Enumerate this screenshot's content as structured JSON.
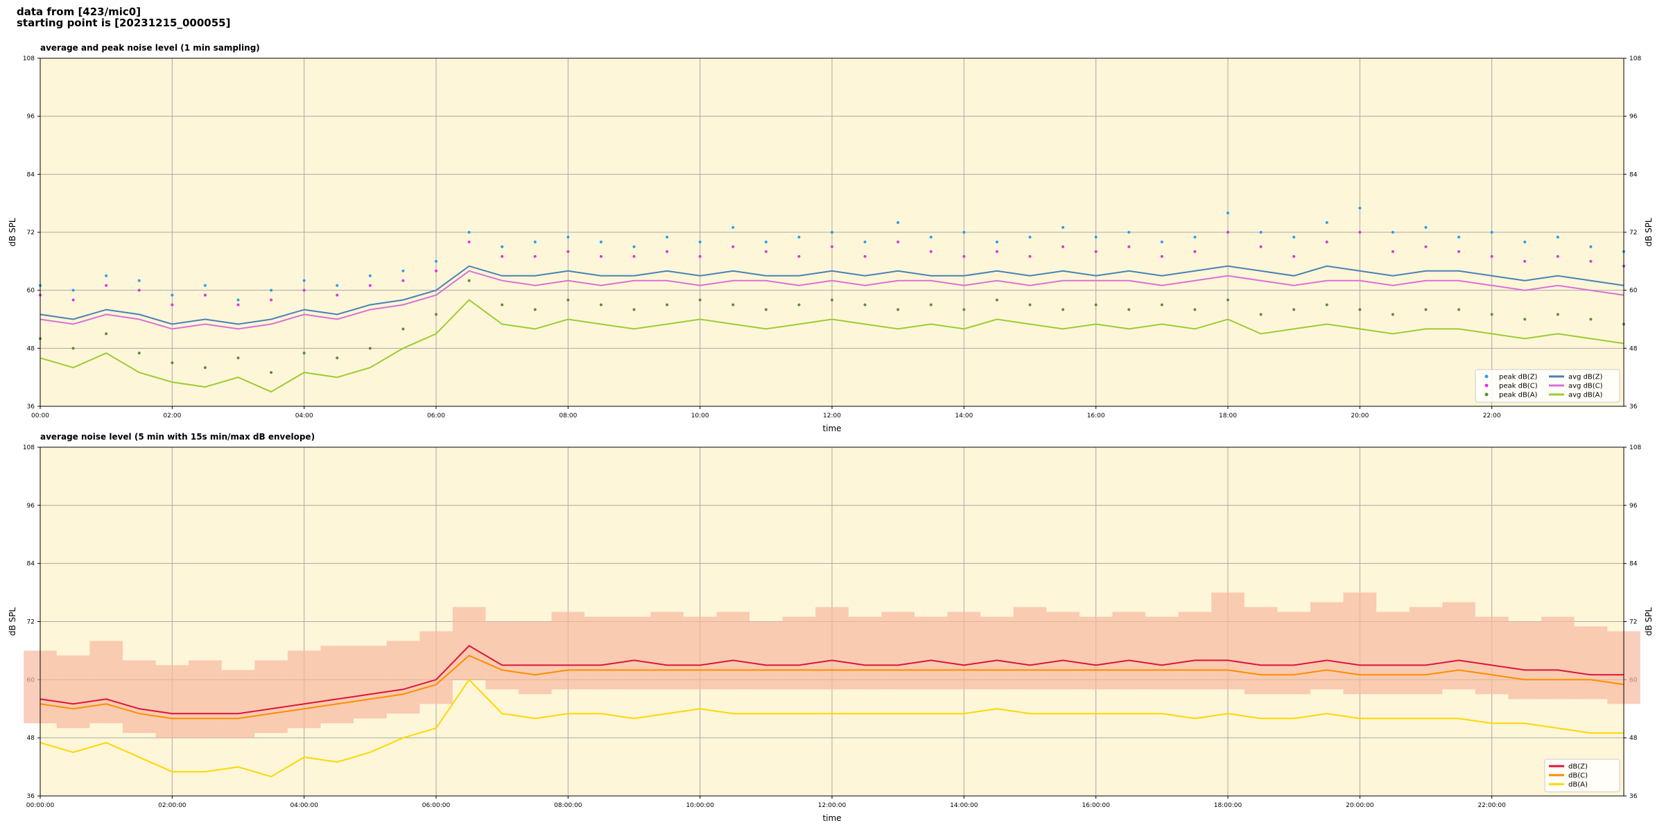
{
  "header": {
    "line1": "data from [423/mic0]",
    "line2": "starting point is [20231215_000055]"
  },
  "chart_data": [
    {
      "type": "line",
      "title": "average and peak noise level (1 min sampling)",
      "xlabel": "time",
      "ylabel": "dB SPL",
      "background": "#fef6d8",
      "grid": true,
      "legend": "lower right",
      "legend_columns": 2,
      "xlim": [
        0,
        24
      ],
      "ylim": [
        36,
        108
      ],
      "xticks": [
        {
          "value": 0,
          "label": "00:00"
        },
        {
          "value": 2,
          "label": "02:00"
        },
        {
          "value": 4,
          "label": "04:00"
        },
        {
          "value": 6,
          "label": "06:00"
        },
        {
          "value": 8,
          "label": "08:00"
        },
        {
          "value": 10,
          "label": "10:00"
        },
        {
          "value": 12,
          "label": "12:00"
        },
        {
          "value": 14,
          "label": "14:00"
        },
        {
          "value": 16,
          "label": "16:00"
        },
        {
          "value": 18,
          "label": "18:00"
        },
        {
          "value": 20,
          "label": "20:00"
        },
        {
          "value": 22,
          "label": "22:00"
        }
      ],
      "yticks": [
        36,
        48,
        60,
        72,
        84,
        96,
        108
      ],
      "x": [
        0,
        0.5,
        1,
        1.5,
        2,
        2.5,
        3,
        3.5,
        4,
        4.5,
        5,
        5.5,
        6,
        6.5,
        7,
        7.5,
        8,
        8.5,
        9,
        9.5,
        10,
        10.5,
        11,
        11.5,
        12,
        12.5,
        13,
        13.5,
        14,
        14.5,
        15,
        15.5,
        16,
        16.5,
        17,
        17.5,
        18,
        18.5,
        19,
        19.5,
        20,
        20.5,
        21,
        21.5,
        22,
        22.5,
        23,
        23.5,
        24
      ],
      "series": [
        {
          "name": "peak dB(Z)",
          "color": "#2a9df4",
          "style": "points",
          "values": [
            61,
            60,
            63,
            62,
            59,
            61,
            58,
            60,
            62,
            61,
            63,
            64,
            66,
            72,
            69,
            70,
            71,
            70,
            69,
            71,
            70,
            73,
            70,
            71,
            72,
            70,
            74,
            71,
            72,
            70,
            71,
            73,
            71,
            72,
            70,
            71,
            76,
            72,
            71,
            74,
            77,
            72,
            73,
            71,
            72,
            70,
            71,
            69,
            68
          ]
        },
        {
          "name": "peak dB(C)",
          "color": "#e033e0",
          "style": "points",
          "values": [
            59,
            58,
            61,
            60,
            57,
            59,
            57,
            58,
            60,
            59,
            61,
            62,
            64,
            70,
            67,
            67,
            68,
            67,
            67,
            68,
            67,
            69,
            68,
            67,
            69,
            67,
            70,
            68,
            67,
            68,
            67,
            69,
            68,
            69,
            67,
            68,
            72,
            69,
            67,
            70,
            72,
            68,
            69,
            68,
            67,
            66,
            67,
            66,
            65
          ]
        },
        {
          "name": "peak dB(A)",
          "color": "#5e8c3a",
          "style": "points",
          "values": [
            50,
            48,
            51,
            47,
            45,
            44,
            46,
            43,
            47,
            46,
            48,
            52,
            55,
            62,
            57,
            56,
            58,
            57,
            56,
            57,
            58,
            57,
            56,
            57,
            58,
            57,
            56,
            57,
            56,
            58,
            57,
            56,
            57,
            56,
            57,
            56,
            58,
            55,
            56,
            57,
            56,
            55,
            56,
            56,
            55,
            54,
            55,
            54,
            53
          ]
        },
        {
          "name": "avg dB(Z)",
          "color": "#4682b4",
          "style": "line",
          "values": [
            55,
            54,
            56,
            55,
            53,
            54,
            53,
            54,
            56,
            55,
            57,
            58,
            60,
            65,
            63,
            63,
            64,
            63,
            63,
            64,
            63,
            64,
            63,
            63,
            64,
            63,
            64,
            63,
            63,
            64,
            63,
            64,
            63,
            64,
            63,
            64,
            65,
            64,
            63,
            65,
            64,
            63,
            64,
            64,
            63,
            62,
            63,
            62,
            61
          ]
        },
        {
          "name": "avg dB(C)",
          "color": "#da70d6",
          "style": "line",
          "values": [
            54,
            53,
            55,
            54,
            52,
            53,
            52,
            53,
            55,
            54,
            56,
            57,
            59,
            64,
            62,
            61,
            62,
            61,
            62,
            62,
            61,
            62,
            62,
            61,
            62,
            61,
            62,
            62,
            61,
            62,
            61,
            62,
            62,
            62,
            61,
            62,
            63,
            62,
            61,
            62,
            62,
            61,
            62,
            62,
            61,
            60,
            61,
            60,
            59
          ]
        },
        {
          "name": "avg dB(A)",
          "color": "#9acd32",
          "style": "line",
          "values": [
            46,
            44,
            47,
            43,
            41,
            40,
            42,
            39,
            43,
            42,
            44,
            48,
            51,
            58,
            53,
            52,
            54,
            53,
            52,
            53,
            54,
            53,
            52,
            53,
            54,
            53,
            52,
            53,
            52,
            54,
            53,
            52,
            53,
            52,
            53,
            52,
            54,
            51,
            52,
            53,
            52,
            51,
            52,
            52,
            51,
            50,
            51,
            50,
            49
          ]
        }
      ]
    },
    {
      "type": "line",
      "title": "average noise level (5 min with 15s min/max dB envelope)",
      "xlabel": "time",
      "ylabel": "dB SPL",
      "background": "#fef6d8",
      "grid": true,
      "legend": "lower right",
      "legend_columns": 1,
      "xlim": [
        0,
        24
      ],
      "ylim": [
        36,
        108
      ],
      "xticks": [
        {
          "value": 0,
          "label": "00:00:00"
        },
        {
          "value": 2,
          "label": "02:00:00"
        },
        {
          "value": 4,
          "label": "04:00:00"
        },
        {
          "value": 6,
          "label": "06:00:00"
        },
        {
          "value": 8,
          "label": "08:00:00"
        },
        {
          "value": 10,
          "label": "10:00:00"
        },
        {
          "value": 12,
          "label": "12:00:00"
        },
        {
          "value": 14,
          "label": "14:00:00"
        },
        {
          "value": 16,
          "label": "16:00:00"
        },
        {
          "value": 18,
          "label": "18:00:00"
        },
        {
          "value": 20,
          "label": "20:00:00"
        },
        {
          "value": 22,
          "label": "22:00:00"
        }
      ],
      "yticks": [
        36,
        48,
        60,
        72,
        84,
        96,
        108
      ],
      "x": [
        0,
        0.5,
        1,
        1.5,
        2,
        2.5,
        3,
        3.5,
        4,
        4.5,
        5,
        5.5,
        6,
        6.5,
        7,
        7.5,
        8,
        8.5,
        9,
        9.5,
        10,
        10.5,
        11,
        11.5,
        12,
        12.5,
        13,
        13.5,
        14,
        14.5,
        15,
        15.5,
        16,
        16.5,
        17,
        17.5,
        18,
        18.5,
        19,
        19.5,
        20,
        20.5,
        21,
        21.5,
        22,
        22.5,
        23,
        23.5,
        24
      ],
      "envelope_color": "#f7b9a0",
      "envelope_max": [
        66,
        65,
        68,
        64,
        63,
        64,
        62,
        64,
        66,
        67,
        67,
        68,
        70,
        75,
        72,
        72,
        74,
        73,
        73,
        74,
        73,
        74,
        72,
        73,
        75,
        73,
        74,
        73,
        74,
        73,
        75,
        74,
        73,
        74,
        73,
        74,
        78,
        75,
        74,
        76,
        78,
        74,
        75,
        76,
        73,
        72,
        73,
        71,
        70
      ],
      "envelope_min": [
        51,
        50,
        51,
        49,
        48,
        48,
        48,
        49,
        50,
        51,
        52,
        53,
        55,
        60,
        58,
        57,
        58,
        58,
        58,
        58,
        58,
        58,
        58,
        58,
        58,
        58,
        58,
        58,
        58,
        58,
        58,
        58,
        58,
        58,
        58,
        58,
        58,
        57,
        57,
        58,
        57,
        57,
        57,
        58,
        57,
        56,
        56,
        56,
        55
      ],
      "series": [
        {
          "name": "dB(Z)",
          "color": "#dc143c",
          "style": "line",
          "values": [
            56,
            55,
            56,
            54,
            53,
            53,
            53,
            54,
            55,
            56,
            57,
            58,
            60,
            67,
            63,
            63,
            63,
            63,
            64,
            63,
            63,
            64,
            63,
            63,
            64,
            63,
            63,
            64,
            63,
            64,
            63,
            64,
            63,
            64,
            63,
            64,
            64,
            63,
            63,
            64,
            63,
            63,
            63,
            64,
            63,
            62,
            62,
            61,
            61
          ]
        },
        {
          "name": "dB(C)",
          "color": "#ff8c00",
          "style": "line",
          "values": [
            55,
            54,
            55,
            53,
            52,
            52,
            52,
            53,
            54,
            55,
            56,
            57,
            59,
            65,
            62,
            61,
            62,
            62,
            62,
            62,
            62,
            62,
            62,
            62,
            62,
            62,
            62,
            62,
            62,
            62,
            62,
            62,
            62,
            62,
            62,
            62,
            62,
            61,
            61,
            62,
            61,
            61,
            61,
            62,
            61,
            60,
            60,
            60,
            59
          ]
        },
        {
          "name": "dB(A)",
          "color": "#ffd700",
          "style": "line",
          "values": [
            47,
            45,
            47,
            44,
            41,
            41,
            42,
            40,
            44,
            43,
            45,
            48,
            50,
            60,
            53,
            52,
            53,
            53,
            52,
            53,
            54,
            53,
            53,
            53,
            53,
            53,
            53,
            53,
            53,
            54,
            53,
            53,
            53,
            53,
            53,
            52,
            53,
            52,
            52,
            53,
            52,
            52,
            52,
            52,
            51,
            51,
            50,
            49,
            49
          ]
        }
      ]
    }
  ]
}
